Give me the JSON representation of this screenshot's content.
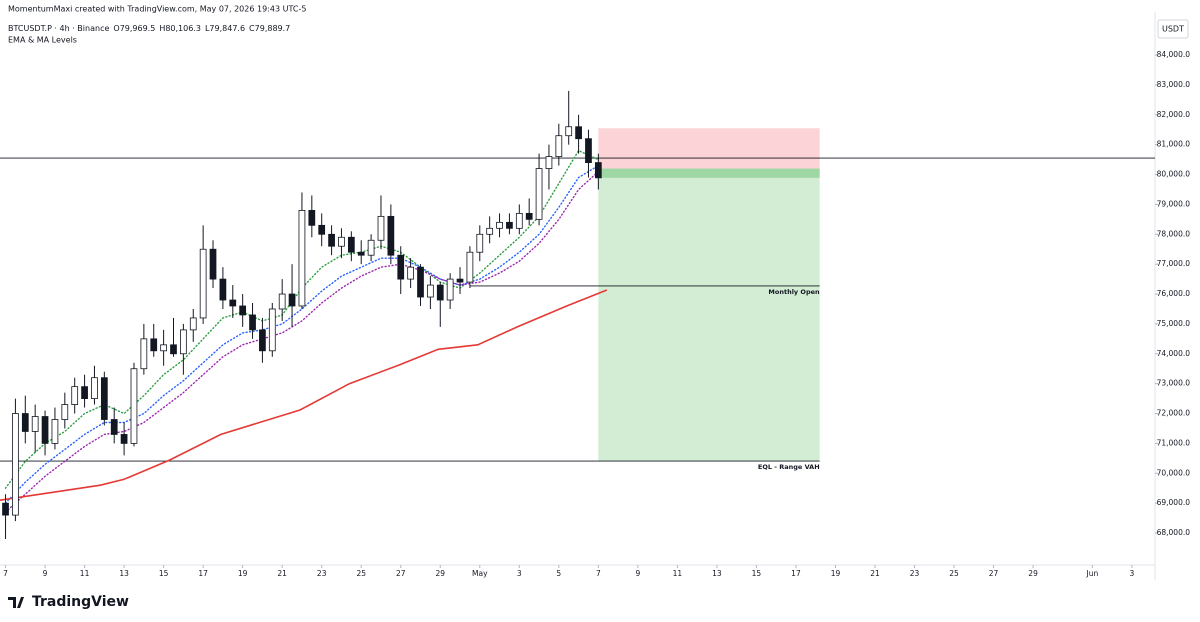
{
  "header": {
    "credit": "MomentumMaxi created with TradingView.com, May 07, 2026 19:43 UTC-5",
    "symbol": "BTCUSDT.P · 4h · Binance",
    "ohlc": [
      "O79,969.5",
      "H80,106.3",
      "L79,847.6",
      "C79,889.7"
    ],
    "logo": "TradingView"
  },
  "chart_data": {
    "type": "candlestick",
    "indicator": "EMA & MA Levels",
    "currency": "USDT",
    "x": [
      7,
      7.5,
      8,
      8.5,
      9,
      9.5,
      10,
      10.5,
      11,
      11.5,
      12,
      12.5,
      13,
      13.5,
      14,
      14.5,
      15,
      15.5,
      16,
      16.5,
      17,
      17.5,
      18,
      18.5,
      19,
      19.5,
      20,
      20.5,
      21,
      21.5,
      22,
      22.5,
      23,
      23.5,
      24,
      24.5,
      25,
      25.5,
      26,
      26.5,
      27,
      27.5,
      28,
      28.5,
      29,
      29.5,
      30,
      30.5,
      31,
      31.5,
      32,
      32.5,
      33,
      33.5,
      34,
      34.5,
      35,
      35.5,
      36,
      36.5,
      37
    ],
    "open": [
      69000,
      68600,
      72000,
      71400,
      71900,
      71000,
      71800,
      72300,
      72900,
      72500,
      73200,
      71800,
      71300,
      71000,
      73500,
      74500,
      74100,
      74300,
      74000,
      74800,
      75200,
      77500,
      76500,
      75800,
      75600,
      75300,
      74800,
      74100,
      75500,
      76000,
      75600,
      78800,
      78300,
      78000,
      77600,
      77900,
      77400,
      77300,
      77800,
      78600,
      77300,
      76500,
      76900,
      75900,
      76300,
      75800,
      76500,
      76400,
      77400,
      78000,
      78200,
      78400,
      78200,
      78700,
      78500,
      80200,
      80600,
      81300,
      81600,
      81200,
      80400
    ],
    "high": [
      69300,
      72500,
      72600,
      72300,
      72100,
      72200,
      72700,
      73200,
      73300,
      73600,
      73400,
      72200,
      71700,
      73700,
      75000,
      75000,
      74800,
      75200,
      75000,
      75500,
      78300,
      77800,
      76900,
      76300,
      76000,
      75700,
      75200,
      75700,
      76500,
      77000,
      79400,
      79300,
      78700,
      78300,
      78200,
      78100,
      77800,
      78000,
      79300,
      79000,
      77600,
      77200,
      77000,
      76600,
      76400,
      76700,
      76900,
      77600,
      78300,
      78600,
      78700,
      78700,
      79000,
      79200,
      80700,
      81000,
      81700,
      82800,
      82000,
      81500,
      80700
    ],
    "low": [
      67800,
      68400,
      71000,
      70700,
      70600,
      70800,
      71500,
      72000,
      72200,
      72300,
      71600,
      71000,
      70600,
      70900,
      73300,
      73900,
      73600,
      73900,
      73300,
      74400,
      75000,
      76200,
      75500,
      75200,
      74900,
      74500,
      73700,
      73900,
      75100,
      74900,
      75500,
      77900,
      77600,
      77300,
      77200,
      77100,
      77000,
      77100,
      77500,
      77000,
      76000,
      76200,
      75600,
      75500,
      74900,
      75500,
      76000,
      76200,
      77100,
      77700,
      77900,
      78000,
      78000,
      78300,
      78300,
      79500,
      80300,
      81000,
      80700,
      79900,
      79500
    ],
    "close": [
      68600,
      72000,
      71400,
      71900,
      71000,
      71800,
      72300,
      72900,
      72500,
      73200,
      71800,
      71300,
      71000,
      73500,
      74500,
      74100,
      74300,
      74000,
      74800,
      75200,
      77500,
      76500,
      75800,
      75600,
      75300,
      74800,
      74100,
      75500,
      76000,
      75600,
      78800,
      78300,
      78000,
      77600,
      77900,
      77400,
      77300,
      77800,
      78600,
      77300,
      76500,
      76900,
      75900,
      76300,
      75800,
      76500,
      76400,
      77400,
      78000,
      78200,
      78400,
      78200,
      78700,
      78500,
      80200,
      80600,
      81300,
      81600,
      81200,
      80400,
      79889.7
    ],
    "lines": [
      {
        "color": "#2e9e44",
        "dotted": true,
        "x": [
          7,
          8,
          9,
          10,
          11,
          12,
          13,
          14,
          15,
          16,
          17,
          18,
          19,
          20,
          21,
          22,
          23,
          24,
          25,
          26,
          27,
          28,
          29,
          30,
          31,
          32,
          33,
          34,
          35,
          36,
          37
        ],
        "values": [
          69500,
          70400,
          71000,
          71400,
          72000,
          72300,
          72000,
          72600,
          73300,
          73800,
          74500,
          75200,
          75400,
          75100,
          75300,
          76200,
          76900,
          77300,
          77400,
          77600,
          77400,
          76900,
          76400,
          76200,
          76700,
          77300,
          77900,
          78600,
          79700,
          80800,
          80500
        ]
      },
      {
        "color": "#2962ff",
        "dotted": true,
        "x": [
          7,
          8,
          9,
          10,
          11,
          12,
          13,
          14,
          15,
          16,
          17,
          18,
          19,
          20,
          21,
          22,
          23,
          24,
          25,
          26,
          27,
          28,
          29,
          30,
          31,
          32,
          33,
          34,
          35,
          36,
          37
        ],
        "values": [
          69000,
          69700,
          70300,
          70800,
          71300,
          71700,
          71700,
          72000,
          72600,
          73100,
          73700,
          74300,
          74700,
          74800,
          75000,
          75500,
          76100,
          76600,
          76900,
          77200,
          77200,
          76900,
          76500,
          76300,
          76500,
          76900,
          77400,
          78000,
          78900,
          79900,
          80300
        ]
      },
      {
        "color": "#9c27b0",
        "dotted": true,
        "x": [
          7,
          8,
          9,
          10,
          11,
          12,
          13,
          14,
          15,
          16,
          17,
          18,
          19,
          20,
          21,
          22,
          23,
          24,
          25,
          26,
          27,
          28,
          29,
          30,
          31,
          32,
          33,
          34,
          35,
          36,
          37
        ],
        "values": [
          68700,
          69300,
          69900,
          70400,
          70900,
          71300,
          71400,
          71700,
          72200,
          72700,
          73300,
          73900,
          74300,
          74500,
          74700,
          75100,
          75700,
          76200,
          76600,
          76900,
          77000,
          76800,
          76500,
          76300,
          76400,
          76700,
          77100,
          77700,
          78500,
          79500,
          80100
        ]
      },
      {
        "color": "#e53935",
        "dotted": false,
        "x": [
          6.72,
          11.8,
          13,
          15.3,
          17.9,
          21.9,
          24.4,
          26.9,
          28.9,
          30.9,
          32.9,
          35.4,
          37.4
        ],
        "values": [
          69100,
          69600,
          69800,
          70440,
          71300,
          72120,
          73000,
          73620,
          74150,
          74300,
          74900,
          75600,
          76130
        ]
      }
    ],
    "levels": [
      {
        "value": 80550
      },
      {
        "value": 76270,
        "label": "Monthly Open",
        "from": 30.5,
        "to": 48.2
      },
      {
        "value": 70410,
        "label": "EQL - Range VAH",
        "to": 48.2
      }
    ],
    "position": {
      "stop": 81550,
      "entry": 80200,
      "target": 70410,
      "from": 37,
      "to": 48.2
    },
    "xlim": [
      6.72,
      65.17
    ],
    "ylim": [
      66930,
      85240
    ],
    "xticks": [
      7,
      9,
      11,
      13,
      15,
      17,
      19,
      21,
      23,
      25,
      27,
      29,
      {
        "value": 31,
        "label": "May"
      },
      {
        "value": 33,
        "label": "3"
      },
      {
        "value": 35,
        "label": "5"
      },
      {
        "value": 37,
        "label": "7"
      },
      {
        "value": 39,
        "label": "9"
      },
      {
        "value": 41,
        "label": "11"
      },
      {
        "value": 43,
        "label": "13"
      },
      {
        "value": 45,
        "label": "15"
      },
      {
        "value": 47,
        "label": "17"
      },
      {
        "value": 49,
        "label": "19"
      },
      {
        "value": 51,
        "label": "21"
      },
      {
        "value": 53,
        "label": "23"
      },
      {
        "value": 55,
        "label": "25"
      },
      {
        "value": 57,
        "label": "27"
      },
      {
        "value": 59,
        "label": "29"
      },
      {
        "value": 62,
        "label": "Jun"
      },
      {
        "value": 64,
        "label": "3"
      }
    ],
    "yticks": [
      {
        "value": 68000,
        "label": "68,000.0"
      },
      {
        "value": 69000,
        "label": "69,000.0"
      },
      {
        "value": 70000,
        "label": "70,000.0"
      },
      {
        "value": 71000,
        "label": "71,000.0"
      },
      {
        "value": 72000,
        "label": "72,000.0"
      },
      {
        "value": 73000,
        "label": "73,000.0"
      },
      {
        "value": 74000,
        "label": "74,000.0"
      },
      {
        "value": 75000,
        "label": "75,000.0"
      },
      {
        "value": 76000,
        "label": "76,000.0"
      },
      {
        "value": 77000,
        "label": "77,000.0"
      },
      {
        "value": 78000,
        "label": "78,000.0"
      },
      {
        "value": 79000,
        "label": "79,000.0"
      },
      {
        "value": 80000,
        "label": "80,000.0"
      },
      {
        "value": 81000,
        "label": "81,000.0"
      },
      {
        "value": 82000,
        "label": "82,000.0"
      },
      {
        "value": 83000,
        "label": "83,000.0"
      },
      {
        "value": 84000,
        "label": "84,000.0"
      }
    ]
  }
}
